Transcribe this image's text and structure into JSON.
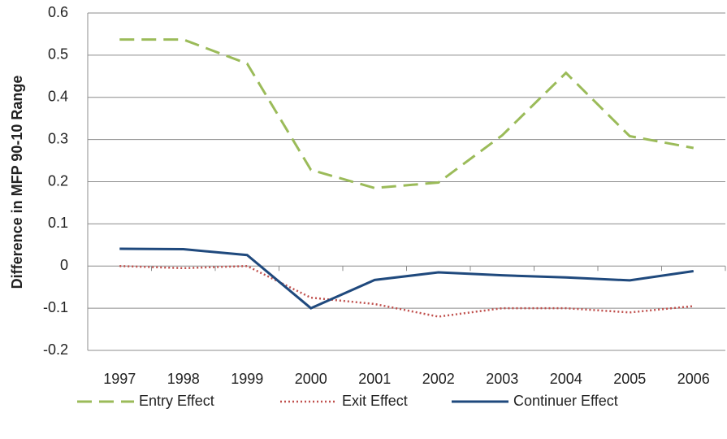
{
  "chart_data": {
    "type": "line",
    "y_label": "Difference in MFP 90-10 Range",
    "categories": [
      "1997",
      "1998",
      "1999",
      "2000",
      "2001",
      "2002",
      "2003",
      "2004",
      "2005",
      "2006"
    ],
    "series": [
      {
        "name": "Entry Effect",
        "color": "#9bbb59",
        "style": "dashed",
        "values": [
          0.537,
          0.537,
          0.48,
          0.228,
          0.185,
          0.198,
          0.31,
          0.458,
          0.308,
          0.28
        ]
      },
      {
        "name": "Exit Effect",
        "color": "#c0504d",
        "style": "dotted",
        "values": [
          0,
          -0.005,
          0,
          -0.075,
          -0.09,
          -0.12,
          -0.1,
          -0.1,
          -0.11,
          -0.095
        ]
      },
      {
        "name": "Continuer Effect",
        "color": "#1f497d",
        "style": "solid",
        "values": [
          0.041,
          0.04,
          0.026,
          -0.1,
          -0.033,
          -0.015,
          -0.022,
          -0.027,
          -0.034,
          -0.012
        ]
      }
    ],
    "ylim": [
      -0.2,
      0.6
    ],
    "yticks": [
      -0.2,
      -0.1,
      0,
      0.1,
      0.2,
      0.3,
      0.4,
      0.5,
      0.6
    ],
    "grid": true,
    "legend": "bottom"
  }
}
